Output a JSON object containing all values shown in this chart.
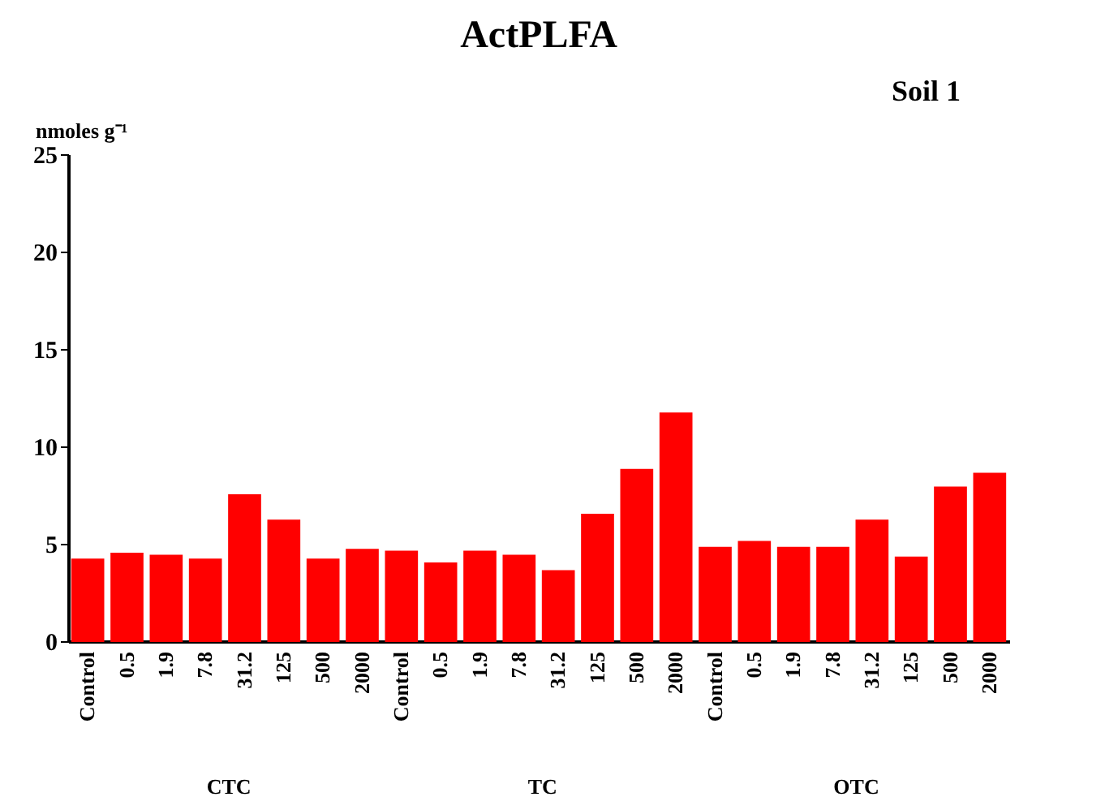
{
  "chart_data": {
    "type": "bar",
    "title": "ActPLFA",
    "subtitle": "Soil 1",
    "ylabel": "nmoles g⁻¹",
    "categories": [
      "Control",
      "0.5",
      "1.9",
      "7.8",
      "31.2",
      "125",
      "500",
      "2000",
      "Control",
      "0.5",
      "1.9",
      "7.8",
      "31.2",
      "125",
      "500",
      "2000",
      "Control",
      "0.5",
      "1.9",
      "7.8",
      "31.2",
      "125",
      "500",
      "2000"
    ],
    "values": [
      4.2,
      4.5,
      4.4,
      4.2,
      7.5,
      6.2,
      4.2,
      4.7,
      4.6,
      4.0,
      4.6,
      4.4,
      3.6,
      6.5,
      8.8,
      11.7,
      4.8,
      5.1,
      4.8,
      4.8,
      6.2,
      4.3,
      7.9,
      8.6
    ],
    "color": "#ff0000",
    "ylim": [
      0,
      25
    ],
    "yticks": [
      0,
      5,
      10,
      15,
      20,
      25
    ],
    "grid": false,
    "annotations": [
      "CTC",
      "TC",
      "OTC"
    ]
  }
}
